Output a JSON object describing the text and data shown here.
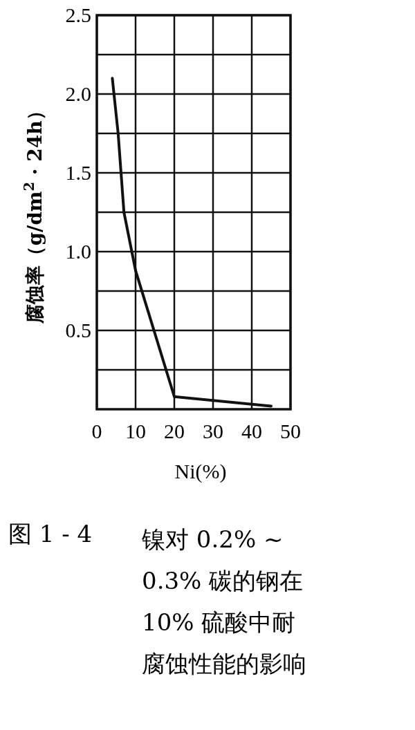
{
  "chart_data": {
    "type": "line",
    "ylabel": "腐蚀率（g/dm$^{2}$ · 24h）",
    "xlabel": "Ni(%)",
    "x": [
      4,
      5.5,
      7,
      10,
      20,
      45
    ],
    "values": [
      2.1,
      1.75,
      1.25,
      0.88,
      0.08,
      0.02
    ],
    "color": "#111111",
    "xlim": [
      0,
      50
    ],
    "ylim": [
      0,
      2.5
    ],
    "xticks": [
      0,
      10,
      20,
      30,
      40,
      50
    ],
    "yticks": [
      {
        "value": 0.25,
        "label": null
      },
      0.5,
      {
        "value": 0.75,
        "label": null
      },
      {
        "value": 1.0,
        "label": "1.0"
      },
      {
        "value": 1.25,
        "label": null
      },
      1.5,
      {
        "value": 1.75,
        "label": null
      },
      {
        "value": 2.0,
        "label": "2.0"
      },
      {
        "value": 2.25,
        "label": null
      },
      2.5
    ],
    "grid": true,
    "annotations": [
      "图 1 - 4",
      "镍对 0.2% ~ 0.3% 碳的钢在 10% 硫酸中耐腐蚀性能的影响"
    ]
  }
}
